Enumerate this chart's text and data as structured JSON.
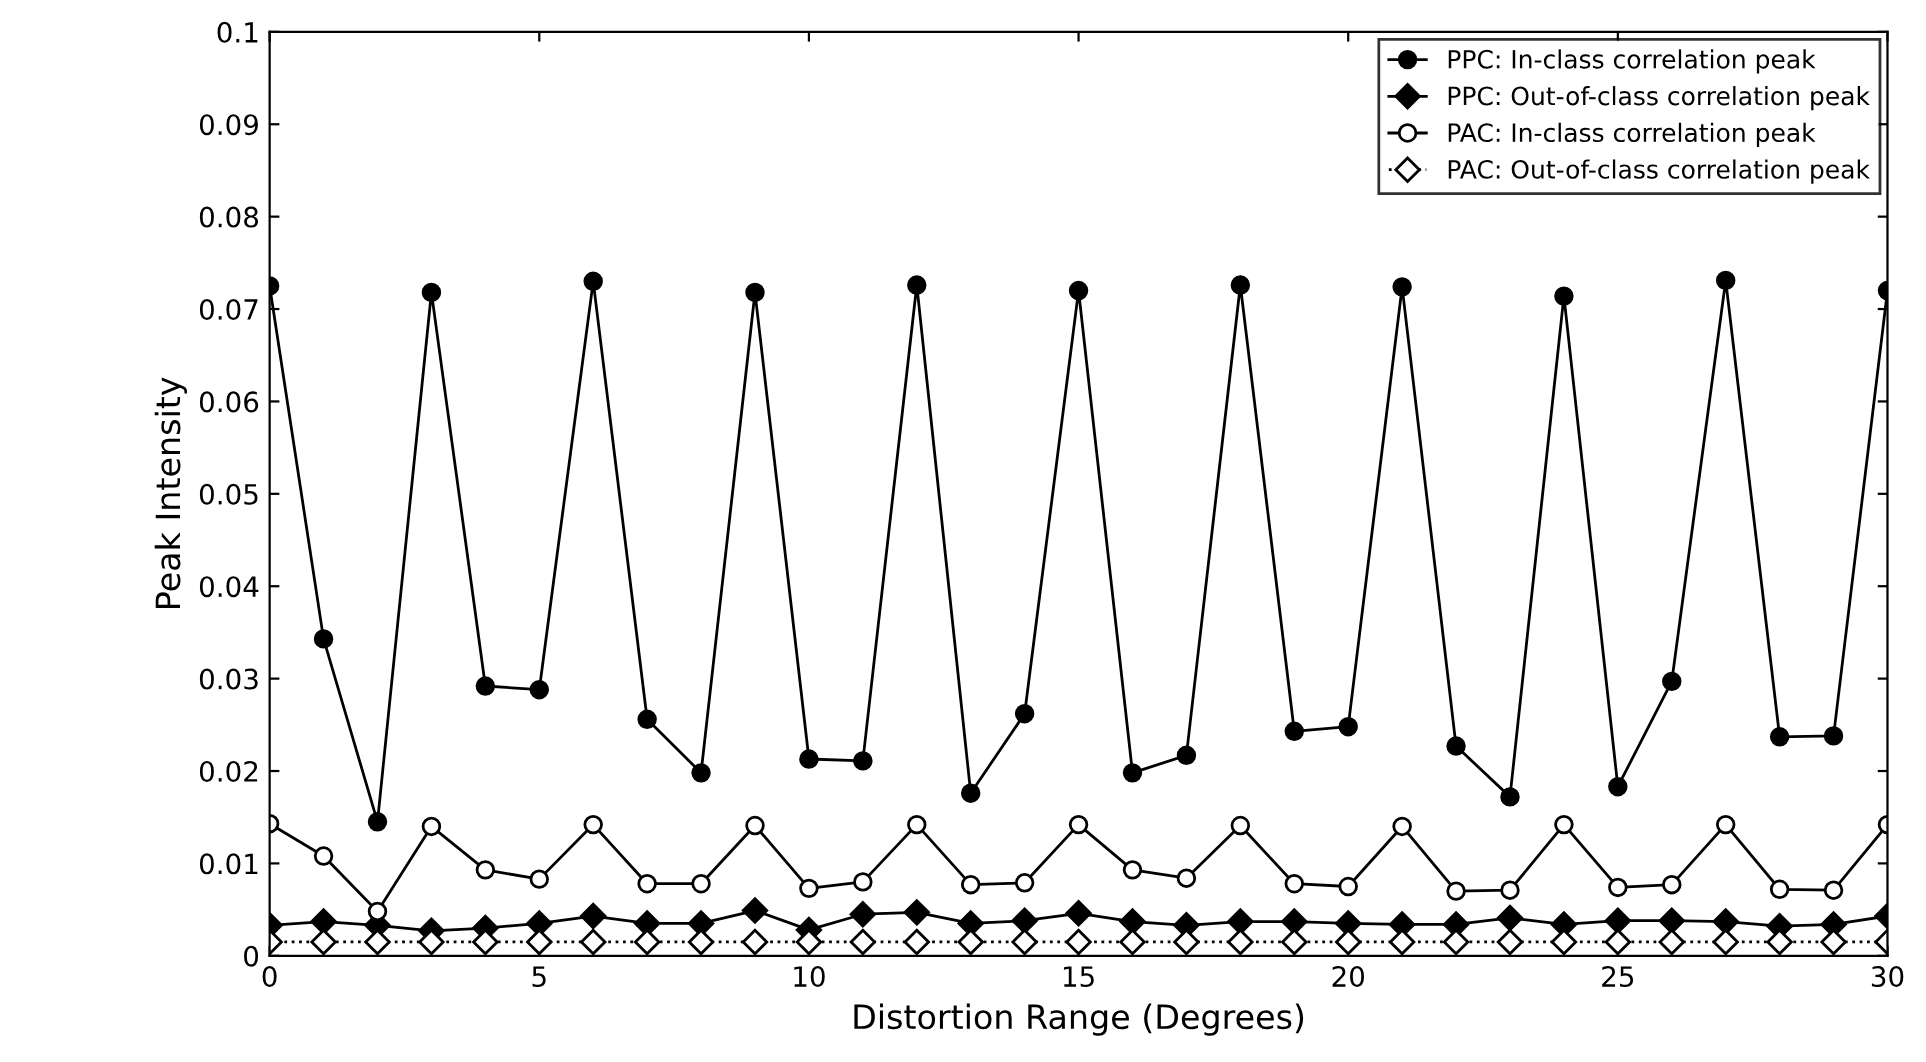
{
  "chart_data": {
    "type": "line",
    "xlabel": "Distortion Range (Degrees)",
    "ylabel": "Peak Intensity",
    "x": [
      0,
      1,
      2,
      3,
      4,
      5,
      6,
      7,
      8,
      9,
      10,
      11,
      12,
      13,
      14,
      15,
      16,
      17,
      18,
      19,
      20,
      21,
      22,
      23,
      24,
      25,
      26,
      27,
      28,
      29,
      30
    ],
    "series": [
      {
        "name": "PPC: In-class correlation peak",
        "color": "#000000",
        "marker": "circle",
        "line_style": "solid",
        "values": [
          0.0725,
          0.0343,
          0.0145,
          0.0718,
          0.0292,
          0.0288,
          0.073,
          0.0256,
          0.0198,
          0.0718,
          0.0213,
          0.0211,
          0.0726,
          0.0176,
          0.0262,
          0.072,
          0.0198,
          0.0217,
          0.0726,
          0.0243,
          0.0248,
          0.0724,
          0.0227,
          0.0172,
          0.0714,
          0.0183,
          0.0297,
          0.0731,
          0.0237,
          0.0238,
          0.072
        ]
      },
      {
        "name": "PPC: Out-of-class correlation peak",
        "color": "#000000",
        "marker": "diamond",
        "line_style": "solid",
        "values": [
          0.0033,
          0.0037,
          0.0033,
          0.0027,
          0.003,
          0.0035,
          0.0043,
          0.0035,
          0.0035,
          0.0049,
          0.0028,
          0.0045,
          0.0047,
          0.0035,
          0.0038,
          0.0046,
          0.0037,
          0.0033,
          0.0037,
          0.0037,
          0.0035,
          0.0034,
          0.0034,
          0.0041,
          0.0034,
          0.0038,
          0.0038,
          0.0037,
          0.0032,
          0.0034,
          0.0043
        ]
      },
      {
        "name": "PAC: In-class correlation peak",
        "color": "#000000",
        "marker": "circle_open",
        "line_style": "solid",
        "values": [
          0.0143,
          0.0108,
          0.0048,
          0.014,
          0.0093,
          0.0083,
          0.0142,
          0.0078,
          0.0078,
          0.0141,
          0.0073,
          0.008,
          0.0142,
          0.0077,
          0.0079,
          0.0142,
          0.0093,
          0.0084,
          0.0141,
          0.0078,
          0.0075,
          0.014,
          0.007,
          0.0071,
          0.0142,
          0.0074,
          0.0077,
          0.0142,
          0.0072,
          0.0071,
          0.0142
        ]
      },
      {
        "name": "PAC: Out-of-class correlation peak",
        "color": "#000000",
        "marker": "diamond_open",
        "line_style": "dotted",
        "values": [
          0.0015,
          0.0015,
          0.0015,
          0.0015,
          0.0015,
          0.0015,
          0.0015,
          0.0015,
          0.0015,
          0.0015,
          0.0015,
          0.0015,
          0.0015,
          0.0015,
          0.0015,
          0.0015,
          0.0015,
          0.0015,
          0.0015,
          0.0015,
          0.0015,
          0.0015,
          0.0015,
          0.0015,
          0.0015,
          0.0015,
          0.0015,
          0.0015,
          0.0015,
          0.0015,
          0.0015
        ]
      }
    ],
    "xlim": [
      0,
      30
    ],
    "xticks": [
      0,
      5,
      10,
      15,
      20,
      25,
      30
    ],
    "ylim": [
      0,
      0.1
    ],
    "yticks": [
      0,
      0.01,
      0.02,
      0.03,
      0.04,
      0.05,
      0.06,
      0.07,
      0.08,
      0.09,
      0.1
    ],
    "grid": false,
    "legend": "top right"
  }
}
